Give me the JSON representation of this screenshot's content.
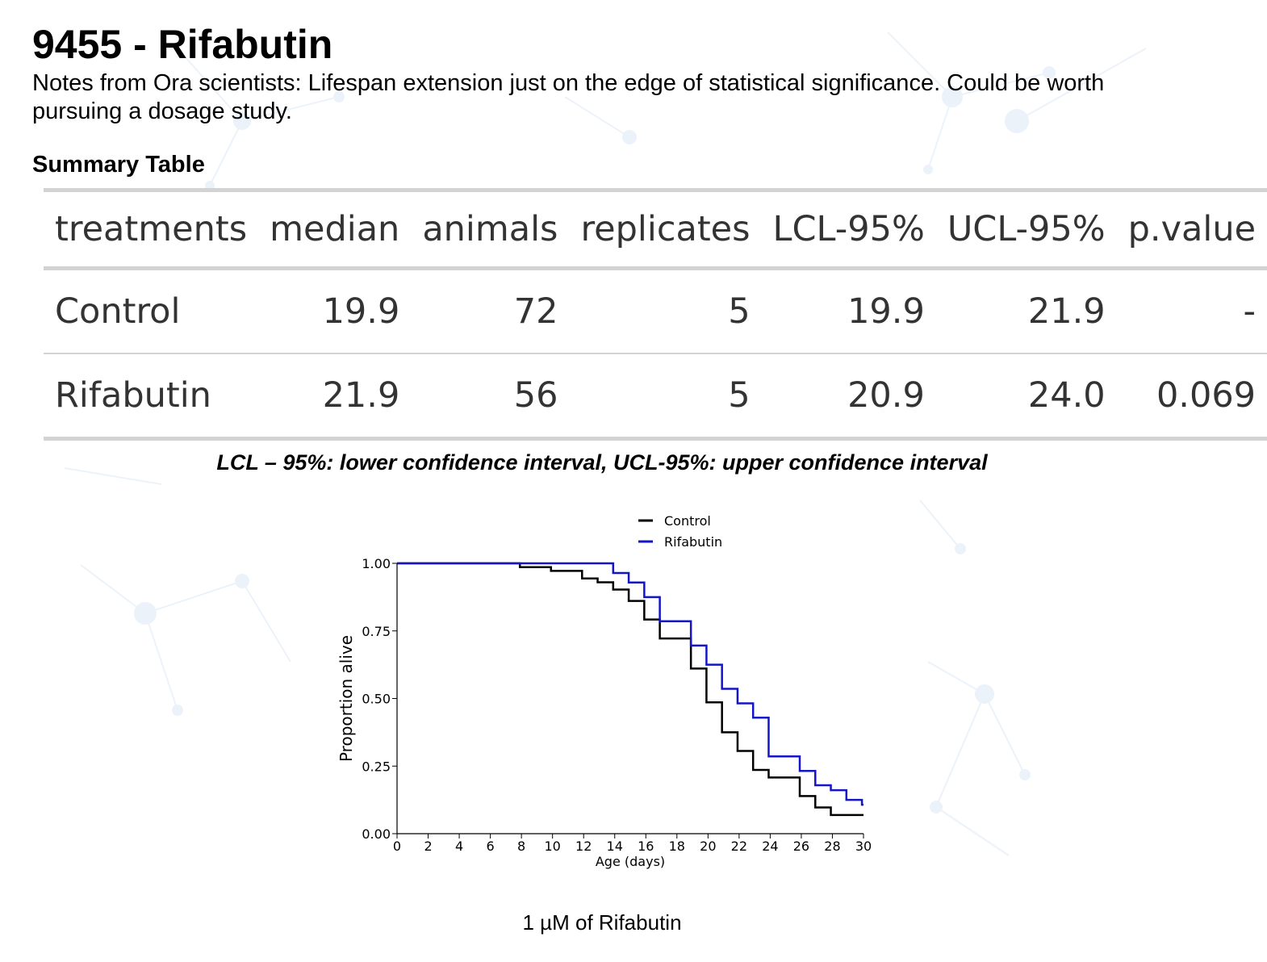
{
  "title": "9455 - Rifabutin",
  "notes": "Notes from Ora scientists: Lifespan extension just on the edge of statistical significance. Could be worth pursuing a dosage study.",
  "summary": {
    "heading": "Summary Table",
    "columns": [
      "treatments",
      "median",
      "animals",
      "replicates",
      "LCL-95%",
      "UCL-95%",
      "p.value"
    ],
    "rows": [
      [
        "Control",
        "19.9",
        "72",
        "5",
        "19.9",
        "21.9",
        "-"
      ],
      [
        "Rifabutin",
        "21.9",
        "56",
        "5",
        "20.9",
        "24.0",
        "0.069"
      ]
    ],
    "footnote": "LCL – 95%: lower confidence interval, UCL-95%: upper confidence interval"
  },
  "caption": "1 µM of Rifabutin",
  "colors": {
    "control": "#000000",
    "rifabutin": "#1515c8",
    "table_rule": "#d3d3d3",
    "background_pattern": "#dbe9f7"
  },
  "chart_data": {
    "type": "line",
    "step": true,
    "xlabel": "Age (days)",
    "ylabel": "Proportion alive",
    "xlim": [
      0,
      30
    ],
    "ylim": [
      0,
      1
    ],
    "xticks": [
      0,
      2,
      4,
      6,
      8,
      10,
      12,
      14,
      16,
      18,
      20,
      22,
      24,
      26,
      28,
      30
    ],
    "yticks": [
      0.0,
      0.25,
      0.5,
      0.75,
      1.0
    ],
    "ytick_labels": [
      "0.00",
      "0.25",
      "0.50",
      "0.75",
      "1.00"
    ],
    "grid": false,
    "legend": "top-center",
    "series": [
      {
        "name": "Control",
        "color": "#000000",
        "x": [
          0,
          7.9,
          9.9,
          11.9,
          12.9,
          13.9,
          14.9,
          15.9,
          16.9,
          18.9,
          19.9,
          20.9,
          21.9,
          22.9,
          23.9,
          25.9,
          26.9,
          27.9,
          29.9
        ],
        "y": [
          1.0,
          0.986,
          0.972,
          0.944,
          0.93,
          0.903,
          0.861,
          0.792,
          0.722,
          0.611,
          0.486,
          0.375,
          0.306,
          0.236,
          0.208,
          0.139,
          0.097,
          0.069,
          0.069
        ]
      },
      {
        "name": "Rifabutin",
        "color": "#1515c8",
        "x": [
          0,
          13.9,
          14.9,
          15.9,
          16.9,
          18.9,
          19.9,
          20.9,
          21.9,
          22.9,
          23.9,
          25.9,
          26.9,
          27.9,
          28.9,
          29.9
        ],
        "y": [
          1.0,
          0.964,
          0.929,
          0.875,
          0.786,
          0.696,
          0.625,
          0.536,
          0.482,
          0.429,
          0.286,
          0.232,
          0.179,
          0.161,
          0.125,
          0.107
        ]
      }
    ]
  }
}
